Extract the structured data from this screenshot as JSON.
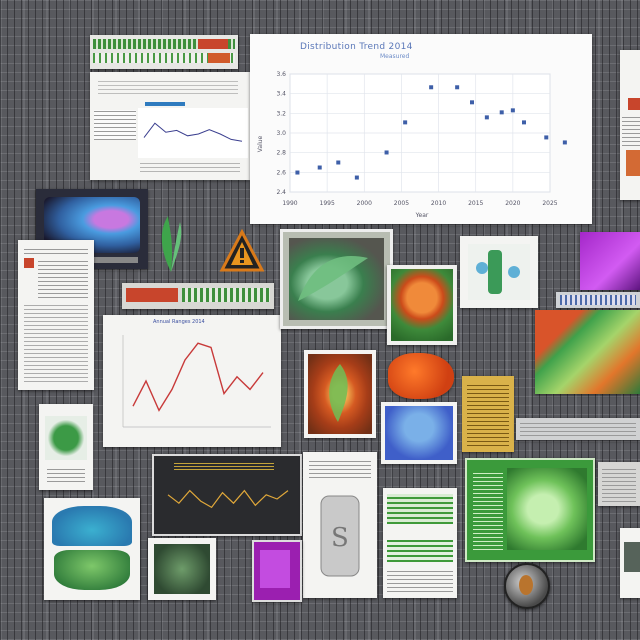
{
  "scatter_panel": {
    "title": "Distribution Trend 2014",
    "subtitle": "Measured",
    "x_ticks": [
      "1990",
      "1995",
      "2000",
      "2005",
      "2010",
      "2015",
      "2020",
      "2025"
    ],
    "y_ticks": [
      "3.6",
      "3.4",
      "3.2",
      "3.0",
      "2.8",
      "2.6",
      "2.4"
    ],
    "x_label": "Year",
    "y_label": "Value",
    "points": [
      [
        0.2,
        0.1
      ],
      [
        0.8,
        0.15
      ],
      [
        1.3,
        0.2
      ],
      [
        1.8,
        0.05
      ],
      [
        2.6,
        0.3
      ],
      [
        3.1,
        0.6
      ],
      [
        3.8,
        0.95
      ],
      [
        4.5,
        0.95
      ],
      [
        4.9,
        0.8
      ],
      [
        5.3,
        0.65
      ],
      [
        5.7,
        0.7
      ],
      [
        6.0,
        0.72
      ],
      [
        6.3,
        0.6
      ],
      [
        6.9,
        0.45
      ],
      [
        7.4,
        0.4
      ]
    ]
  },
  "colors": {
    "accent_red": "#c8452c",
    "accent_green": "#3f9a3a",
    "accent_orange": "#e0661f",
    "purple": "#9b1fb0",
    "blue": "#3f5fc9"
  },
  "small_line_chart": {
    "values": [
      0.4,
      0.8,
      0.55,
      0.6,
      0.45,
      0.5,
      0.62,
      0.5,
      0.35,
      0.3
    ]
  },
  "mid_line_chart": {
    "title": "Annual Ranges 2014",
    "values": [
      0.2,
      0.5,
      0.15,
      0.4,
      0.75,
      0.95,
      0.9,
      0.35,
      0.55,
      0.4,
      0.6
    ]
  },
  "dark_chart": {
    "values": [
      0.6,
      0.4,
      0.7,
      0.45,
      0.3,
      0.65,
      0.4,
      0.7,
      0.35,
      0.6,
      0.5,
      0.7
    ]
  }
}
